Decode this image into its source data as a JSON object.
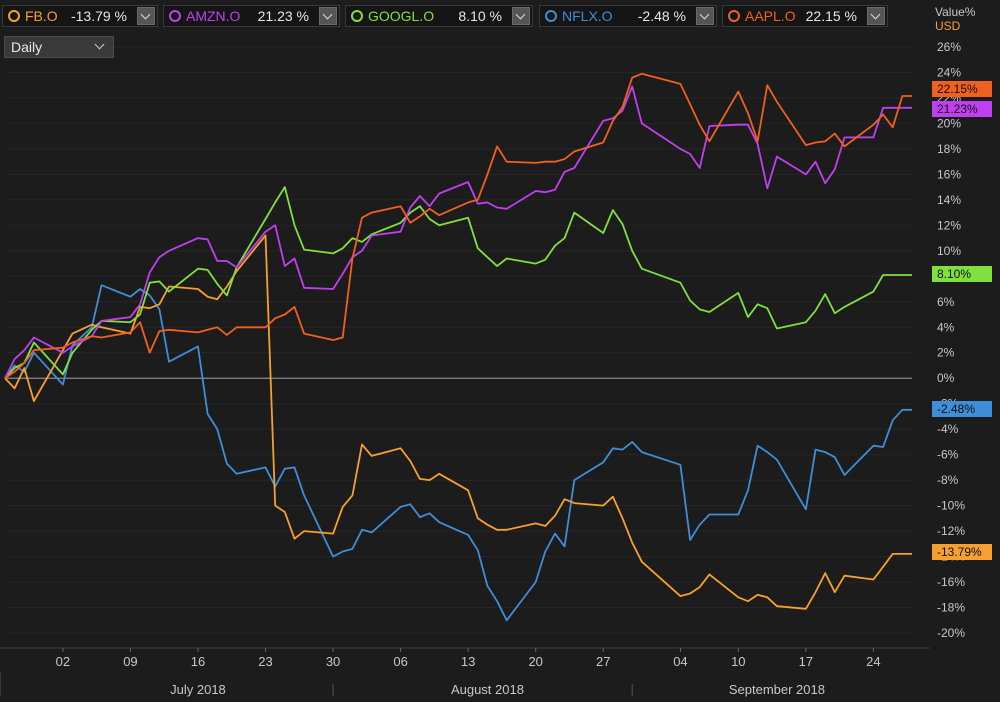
{
  "legend": [
    {
      "symbol": "FB.O",
      "change": "-13.79 %",
      "color": "#f5a030"
    },
    {
      "symbol": "AMZN.O",
      "change": "21.23 %",
      "color": "#c040f0"
    },
    {
      "symbol": "GOOGL.O",
      "change": "8.10 %",
      "color": "#80e040"
    },
    {
      "symbol": "NFLX.O",
      "change": "-2.48 %",
      "color": "#3e8ed8"
    },
    {
      "symbol": "AAPL.O",
      "change": "22.15 %",
      "color": "#f06020"
    }
  ],
  "period": {
    "label": "Daily"
  },
  "axis": {
    "title_line1": "Value%",
    "title_line2": "USD"
  },
  "chart_data": {
    "type": "line",
    "ylabel": "Value%",
    "units": "USD",
    "ylim": [
      -20,
      26
    ],
    "yticks": [
      26,
      24,
      22,
      20,
      18,
      16,
      14,
      12,
      10,
      8,
      6,
      4,
      2,
      0,
      -2,
      -4,
      -6,
      -8,
      -10,
      -12,
      -14,
      -16,
      -18,
      -20
    ],
    "x_start": "2018-06-26",
    "x_end": "2018-09-28",
    "tick_labels": [
      "02",
      "09",
      "16",
      "23",
      "30",
      "06",
      "13",
      "20",
      "27",
      "04",
      "10",
      "17",
      "24"
    ],
    "tick_dates": [
      "2018-07-02",
      "2018-07-09",
      "2018-07-16",
      "2018-07-23",
      "2018-07-30",
      "2018-08-06",
      "2018-08-13",
      "2018-08-20",
      "2018-08-27",
      "2018-09-04",
      "2018-09-10",
      "2018-09-17",
      "2018-09-24"
    ],
    "months": [
      {
        "label": "July 2018",
        "center_date": "2018-07-16"
      },
      {
        "label": "August 2018",
        "center_date": "2018-08-15"
      },
      {
        "label": "September 2018",
        "center_date": "2018-09-14"
      }
    ],
    "month_separators": [
      "2018-07-30",
      "2018-08-30"
    ],
    "dates": [
      "2018-06-26",
      "2018-06-27",
      "2018-06-28",
      "2018-06-29",
      "2018-07-02",
      "2018-07-03",
      "2018-07-05",
      "2018-07-06",
      "2018-07-09",
      "2018-07-10",
      "2018-07-11",
      "2018-07-12",
      "2018-07-13",
      "2018-07-16",
      "2018-07-17",
      "2018-07-18",
      "2018-07-19",
      "2018-07-20",
      "2018-07-23",
      "2018-07-24",
      "2018-07-25",
      "2018-07-26",
      "2018-07-27",
      "2018-07-30",
      "2018-07-31",
      "2018-08-01",
      "2018-08-02",
      "2018-08-03",
      "2018-08-06",
      "2018-08-07",
      "2018-08-08",
      "2018-08-09",
      "2018-08-10",
      "2018-08-13",
      "2018-08-14",
      "2018-08-15",
      "2018-08-16",
      "2018-08-17",
      "2018-08-20",
      "2018-08-21",
      "2018-08-22",
      "2018-08-23",
      "2018-08-24",
      "2018-08-27",
      "2018-08-28",
      "2018-08-29",
      "2018-08-30",
      "2018-08-31",
      "2018-09-04",
      "2018-09-05",
      "2018-09-06",
      "2018-09-07",
      "2018-09-10",
      "2018-09-11",
      "2018-09-12",
      "2018-09-13",
      "2018-09-14",
      "2018-09-17",
      "2018-09-18",
      "2018-09-19",
      "2018-09-20",
      "2018-09-21",
      "2018-09-24",
      "2018-09-25",
      "2018-09-26",
      "2018-09-27",
      "2018-09-28"
    ],
    "series": [
      {
        "name": "FB.O",
        "color": "#f5a030",
        "end_label": "-13.79%",
        "values": [
          0,
          -0.8,
          0.8,
          -1.8,
          2.2,
          3.5,
          4.2,
          4.0,
          3.5,
          5.6,
          5.5,
          5.8,
          7.2,
          7.0,
          6.4,
          6.2,
          7.2,
          8.4,
          11.2,
          -10.0,
          -10.5,
          -12.6,
          -12.0,
          -12.2,
          -10.1,
          -9.2,
          -5.2,
          -6.1,
          -5.5,
          -6.5,
          -7.9,
          -8.0,
          -7.5,
          -8.8,
          -11.0,
          -11.5,
          -11.9,
          -11.9,
          -11.4,
          -11.6,
          -10.8,
          -9.5,
          -9.8,
          -10.0,
          -9.3,
          -11.0,
          -12.9,
          -14.4,
          -17.1,
          -16.9,
          -16.4,
          -15.4,
          -17.2,
          -17.5,
          -17.0,
          -17.2,
          -17.9,
          -18.1,
          -16.8,
          -15.3,
          -16.8,
          -15.5,
          -15.8,
          -14.8,
          -13.79,
          -13.79,
          -13.79
        ]
      },
      {
        "name": "AMZN.O",
        "color": "#c040f0",
        "end_label": "21.23%",
        "values": [
          0,
          1.5,
          2.2,
          3.2,
          2.0,
          2.5,
          3.3,
          4.5,
          4.8,
          5.8,
          8.3,
          9.5,
          10.0,
          11.0,
          10.9,
          9.2,
          9.2,
          8.7,
          11.5,
          12.0,
          8.8,
          9.4,
          7.1,
          7.0,
          8.2,
          9.5,
          10.0,
          11.2,
          11.5,
          13.4,
          14.3,
          13.5,
          14.5,
          15.4,
          13.7,
          13.8,
          13.4,
          13.3,
          14.7,
          14.6,
          14.8,
          16.2,
          16.5,
          20.2,
          20.4,
          21.0,
          22.9,
          20.0,
          18.0,
          17.6,
          16.5,
          19.8,
          19.9,
          19.9,
          18.4,
          14.9,
          17.4,
          16.0,
          17.0,
          15.3,
          16.4,
          18.9,
          18.9,
          21.23,
          21.23,
          21.23,
          21.23
        ]
      },
      {
        "name": "GOOGL.O",
        "color": "#80e040",
        "end_label": "8.10%",
        "values": [
          0,
          0.8,
          1.2,
          2.8,
          0.3,
          2.0,
          3.8,
          4.5,
          4.4,
          5.0,
          7.5,
          7.6,
          6.8,
          8.6,
          8.5,
          7.4,
          6.5,
          8.7,
          12.5,
          13.8,
          15.0,
          12.0,
          10.1,
          9.8,
          10.2,
          11.0,
          10.7,
          11.3,
          12.2,
          13.0,
          13.5,
          12.5,
          12.0,
          12.6,
          10.2,
          9.5,
          8.8,
          9.4,
          9.0,
          9.3,
          10.4,
          11.0,
          13.0,
          11.4,
          13.2,
          12.1,
          10.0,
          8.6,
          7.5,
          6.1,
          5.4,
          5.2,
          6.7,
          4.8,
          5.8,
          5.5,
          3.9,
          4.4,
          5.3,
          6.6,
          5.1,
          5.6,
          6.8,
          8.1,
          8.1,
          8.1,
          8.1
        ]
      },
      {
        "name": "NFLX.O",
        "color": "#3e8ed8",
        "end_label": "-2.48%",
        "values": [
          0,
          1.0,
          0.5,
          2.0,
          -0.5,
          2.6,
          4.0,
          7.3,
          6.4,
          7.0,
          6.5,
          5.4,
          1.3,
          2.5,
          -2.8,
          -4.0,
          -6.7,
          -7.5,
          -7.0,
          -8.5,
          -7.1,
          -7.0,
          -9.2,
          -14.0,
          -13.6,
          -13.4,
          -11.9,
          -12.1,
          -10.1,
          -9.9,
          -10.9,
          -10.6,
          -11.3,
          -12.3,
          -13.5,
          -16.3,
          -17.5,
          -19.0,
          -16.0,
          -13.6,
          -12.2,
          -13.2,
          -8.0,
          -6.6,
          -5.5,
          -5.6,
          -5.0,
          -5.8,
          -6.8,
          -12.7,
          -11.5,
          -10.7,
          -10.7,
          -8.8,
          -5.3,
          -5.8,
          -6.4,
          -10.3,
          -5.6,
          -5.8,
          -6.2,
          -7.6,
          -5.3,
          -5.4,
          -3.3,
          -2.48,
          -2.48
        ]
      },
      {
        "name": "AAPL.O",
        "color": "#f06020",
        "end_label": "22.15%",
        "values": [
          0,
          0.5,
          1.2,
          2.2,
          2.4,
          2.8,
          3.3,
          3.2,
          3.6,
          4.4,
          2.0,
          3.7,
          3.8,
          3.6,
          3.8,
          4.0,
          3.4,
          4.0,
          4.0,
          4.7,
          5.0,
          5.6,
          3.5,
          3.0,
          3.2,
          9.4,
          12.6,
          13.0,
          13.5,
          12.2,
          12.7,
          13.3,
          12.8,
          13.8,
          14.0,
          16.0,
          18.2,
          17.0,
          16.9,
          17.0,
          17.0,
          17.2,
          17.8,
          18.5,
          20.2,
          21.3,
          23.6,
          23.9,
          23.1,
          21.5,
          19.9,
          18.6,
          22.5,
          20.8,
          18.6,
          23.0,
          21.7,
          18.3,
          18.5,
          18.6,
          19.2,
          18.2,
          19.9,
          20.7,
          19.7,
          22.15,
          22.15
        ]
      }
    ]
  }
}
